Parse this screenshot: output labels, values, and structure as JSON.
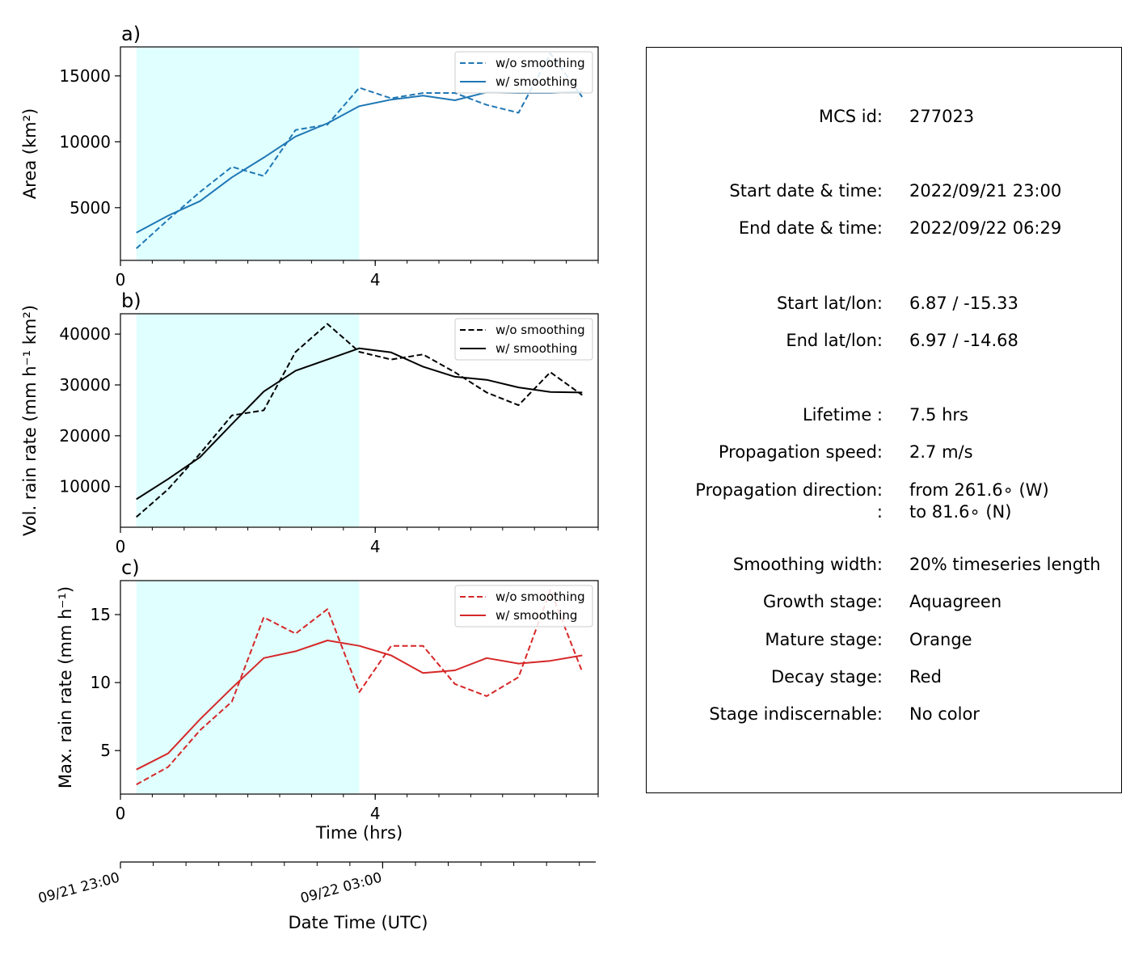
{
  "chart_data": [
    {
      "type": "line",
      "panel_label": "a)",
      "xlabel": "",
      "ylabel": "Area  (km²)",
      "xlim": [
        0,
        7.5
      ],
      "ylim": [
        1000,
        17200
      ],
      "xticks": [
        {
          "value": 0,
          "label": "0"
        },
        {
          "value": 4,
          "label": "4"
        }
      ],
      "yticks": [
        {
          "value": 5000,
          "label": "5000"
        },
        {
          "value": 10000,
          "label": "10000"
        },
        {
          "value": 15000,
          "label": "15000"
        }
      ],
      "stage_shading": [
        {
          "stage": "Growth",
          "x": [
            0.25,
            3.75
          ],
          "color": "#e0ffff"
        }
      ],
      "legend": "upper right",
      "series": [
        {
          "name": "w/o smoothing",
          "style": "dashed",
          "color": "#1f77b4",
          "x": [
            0.25,
            0.75,
            1.25,
            1.75,
            2.25,
            2.75,
            3.25,
            3.75,
            4.25,
            4.75,
            5.25,
            5.75,
            6.25,
            6.75,
            7.25
          ],
          "y": [
            1900,
            4100,
            6200,
            8100,
            7400,
            10900,
            11300,
            14100,
            13300,
            13700,
            13700,
            12800,
            12200,
            16700,
            13400
          ]
        },
        {
          "name": "w/ smoothing",
          "style": "solid",
          "color": "#1f77b4",
          "x": [
            0.25,
            0.75,
            1.25,
            1.75,
            2.25,
            2.75,
            3.25,
            3.75,
            4.25,
            4.75,
            5.25,
            5.75,
            6.25,
            6.75,
            7.25
          ],
          "y": [
            3100,
            4400,
            5500,
            7300,
            8800,
            10400,
            11400,
            12700,
            13200,
            13500,
            13150,
            13750,
            13700,
            13700,
            13800
          ]
        }
      ]
    },
    {
      "type": "line",
      "panel_label": "b)",
      "xlabel": "",
      "ylabel": "Vol. rain rate (mm h⁻¹ km²)",
      "xlim": [
        0,
        7.5
      ],
      "ylim": [
        2000,
        44000
      ],
      "xticks": [
        {
          "value": 0,
          "label": "0"
        },
        {
          "value": 4,
          "label": "4"
        }
      ],
      "yticks": [
        {
          "value": 10000,
          "label": "10000"
        },
        {
          "value": 20000,
          "label": "20000"
        },
        {
          "value": 30000,
          "label": "30000"
        },
        {
          "value": 40000,
          "label": "40000"
        }
      ],
      "stage_shading": [
        {
          "stage": "Growth",
          "x": [
            0.25,
            3.75
          ],
          "color": "#e0ffff"
        }
      ],
      "legend": "upper right",
      "series": [
        {
          "name": "w/o smoothing",
          "style": "dashed",
          "color": "#000000",
          "x": [
            0.25,
            0.75,
            1.25,
            1.75,
            2.25,
            2.75,
            3.25,
            3.75,
            4.25,
            4.75,
            5.25,
            5.75,
            6.25,
            6.75,
            7.25
          ],
          "y": [
            4000,
            9500,
            16500,
            24000,
            25000,
            36500,
            42000,
            36500,
            35000,
            36000,
            32500,
            28500,
            26000,
            32500,
            28000
          ]
        },
        {
          "name": "w/ smoothing",
          "style": "solid",
          "color": "#000000",
          "x": [
            0.25,
            0.75,
            1.25,
            1.75,
            2.25,
            2.75,
            3.25,
            3.75,
            4.25,
            4.75,
            5.25,
            5.75,
            6.25,
            6.75,
            7.25
          ],
          "y": [
            7500,
            11500,
            15800,
            22300,
            28700,
            32800,
            35000,
            37200,
            36400,
            33600,
            31600,
            31000,
            29500,
            28600,
            28500
          ]
        }
      ]
    },
    {
      "type": "line",
      "panel_label": "c)",
      "xlabel": "Time (hrs)",
      "ylabel": "Max. rain rate  (mm h⁻¹)",
      "xlim": [
        0,
        7.5
      ],
      "ylim": [
        1.8,
        17.5
      ],
      "xticks": [
        {
          "value": 0,
          "label": "0"
        },
        {
          "value": 4,
          "label": "4"
        }
      ],
      "yticks": [
        {
          "value": 5,
          "label": "5"
        },
        {
          "value": 10,
          "label": "10"
        },
        {
          "value": 15,
          "label": "15"
        }
      ],
      "stage_shading": [
        {
          "stage": "Growth",
          "x": [
            0.25,
            3.75
          ],
          "color": "#e0ffff"
        }
      ],
      "legend": "upper right",
      "series": [
        {
          "name": "w/o smoothing",
          "style": "dashed",
          "color": "#d62728",
          "x": [
            0.25,
            0.75,
            1.25,
            1.75,
            2.25,
            2.75,
            3.25,
            3.75,
            4.25,
            4.75,
            5.25,
            5.75,
            6.25,
            6.75,
            7.25
          ],
          "y": [
            2.5,
            3.8,
            6.5,
            8.6,
            14.8,
            13.6,
            15.4,
            9.3,
            12.7,
            12.7,
            9.9,
            9.0,
            10.4,
            16.8,
            10.8
          ]
        },
        {
          "name": "w/ smoothing",
          "style": "solid",
          "color": "#d62728",
          "x": [
            0.25,
            0.75,
            1.25,
            1.75,
            2.25,
            2.75,
            3.25,
            3.75,
            4.25,
            4.75,
            5.25,
            5.75,
            6.25,
            6.75,
            7.25
          ],
          "y": [
            3.6,
            4.8,
            7.3,
            9.6,
            11.8,
            12.3,
            13.1,
            12.7,
            12.0,
            10.7,
            10.9,
            11.8,
            11.4,
            11.6,
            12.0
          ]
        }
      ]
    }
  ],
  "date_axis": {
    "xlabel": "Date Time (UTC)",
    "ticks": [
      {
        "value": 0,
        "label": "09/21 23:00"
      },
      {
        "value": 4,
        "label": "09/22 03:00"
      }
    ]
  },
  "info": {
    "rows": [
      {
        "key": "MCS id:",
        "value": "277023"
      },
      {
        "key": "Start date & time:",
        "value": "2022/09/21 23:00"
      },
      {
        "key": "End date & time:",
        "value": "2022/09/22 06:29"
      },
      {
        "key": "Start lat/lon:",
        "value": "6.87 / -15.33"
      },
      {
        "key": "End lat/lon:",
        "value": "6.97 / -14.68"
      },
      {
        "key": "Lifetime :",
        "value": "7.5 hrs"
      },
      {
        "key": "Propagation speed:",
        "value": "2.7 m/s"
      },
      {
        "key": "Propagation direction:",
        "value": "from 261.6∘ (W)"
      },
      {
        "key": ":",
        "value": "to    81.6∘ (N)"
      },
      {
        "key": "Smoothing width:",
        "value": "20% timeseries length"
      },
      {
        "key": "Growth stage:",
        "value": "Aquagreen"
      },
      {
        "key": "Mature stage:",
        "value": "Orange"
      },
      {
        "key": "Decay stage:",
        "value": "Red"
      },
      {
        "key": "Stage indiscernable:",
        "value": "No color"
      }
    ]
  }
}
